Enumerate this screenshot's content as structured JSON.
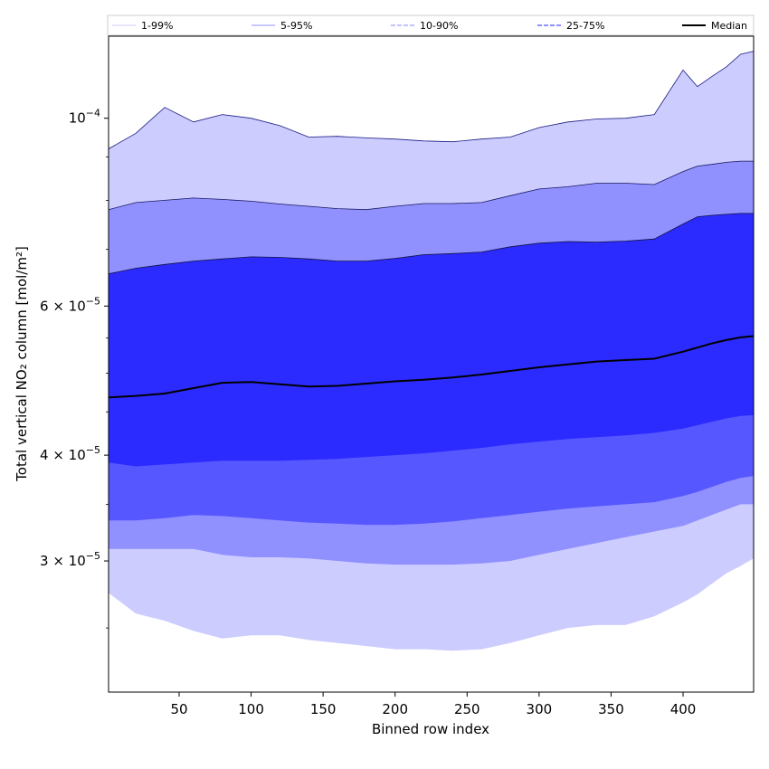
{
  "chart_data": {
    "type": "area",
    "xlabel": "Binned row index",
    "ylabel": "Total vertical NO₂ column [mol/m²]",
    "xlim": [
      1,
      449
    ],
    "ylim": [
      2.1e-05,
      0.000125
    ],
    "yscale": "log",
    "grid": false,
    "legend_position": "top",
    "x_ticks": [
      50,
      100,
      150,
      200,
      250,
      300,
      350,
      400
    ],
    "x_tick_labels": [
      "50",
      "100",
      "150",
      "200",
      "250",
      "300",
      "350",
      "400"
    ],
    "y_ticks": [
      0.0001,
      6e-05,
      4e-05,
      3e-05
    ],
    "y_tick_labels": [
      {
        "base": "10",
        "exp": "−4"
      },
      {
        "mant": "6",
        "base": "10",
        "exp": "−5"
      },
      {
        "mant": "4",
        "base": "10",
        "exp": "−5"
      },
      {
        "mant": "3",
        "base": "10",
        "exp": "−5"
      }
    ],
    "x": [
      1,
      20,
      40,
      60,
      80,
      100,
      120,
      140,
      160,
      180,
      200,
      220,
      240,
      260,
      280,
      300,
      320,
      340,
      360,
      380,
      400,
      410,
      420,
      430,
      440,
      449
    ],
    "series": [
      {
        "name": "1-99%",
        "color": "#ccccff",
        "line_style": "solid",
        "lower": [
          2.75e-05,
          2.6e-05,
          2.55e-05,
          2.48e-05,
          2.43e-05,
          2.45e-05,
          2.45e-05,
          2.42e-05,
          2.4e-05,
          2.38e-05,
          2.36e-05,
          2.36e-05,
          2.35e-05,
          2.36e-05,
          2.4e-05,
          2.45e-05,
          2.5e-05,
          2.52e-05,
          2.52e-05,
          2.58e-05,
          2.68e-05,
          2.74e-05,
          2.82e-05,
          2.9e-05,
          2.96e-05,
          3.02e-05
        ],
        "upper": [
          9.2e-05,
          9.6e-05,
          0.000103,
          9.9e-05,
          0.000101,
          0.0001,
          9.8e-05,
          9.5e-05,
          9.52e-05,
          9.48e-05,
          9.45e-05,
          9.4e-05,
          9.38e-05,
          9.45e-05,
          9.5e-05,
          9.75e-05,
          9.9e-05,
          9.98e-05,
          0.0001,
          0.000101,
          0.000114,
          0.000109,
          0.000112,
          0.000115,
          0.000119,
          0.00012
        ]
      },
      {
        "name": "5-95%",
        "color": "#9090ff",
        "line_style": "solid",
        "lower": [
          3.1e-05,
          3.1e-05,
          3.1e-05,
          3.1e-05,
          3.05e-05,
          3.03e-05,
          3.03e-05,
          3.02e-05,
          3e-05,
          2.98e-05,
          2.97e-05,
          2.97e-05,
          2.97e-05,
          2.98e-05,
          3e-05,
          3.05e-05,
          3.1e-05,
          3.15e-05,
          3.2e-05,
          3.25e-05,
          3.3e-05,
          3.35e-05,
          3.4e-05,
          3.45e-05,
          3.5e-05,
          3.5e-05
        ]
      },
      {
        "name": "10-90%",
        "color": "#5757ff",
        "line_style": "dashed",
        "lower": [
          3.35e-05,
          3.35e-05,
          3.37e-05,
          3.4e-05,
          3.39e-05,
          3.37e-05,
          3.35e-05,
          3.33e-05,
          3.32e-05,
          3.31e-05,
          3.31e-05,
          3.32e-05,
          3.34e-05,
          3.37e-05,
          3.4e-05,
          3.43e-05,
          3.46e-05,
          3.48e-05,
          3.5e-05,
          3.52e-05,
          3.58e-05,
          3.62e-05,
          3.67e-05,
          3.72e-05,
          3.76e-05,
          3.78e-05
        ],
        "upper": [
          7.8e-05,
          7.95e-05,
          8e-05,
          8.05e-05,
          8.02e-05,
          7.98e-05,
          7.92e-05,
          7.87e-05,
          7.82e-05,
          7.8e-05,
          7.87e-05,
          7.93e-05,
          7.93e-05,
          7.95e-05,
          8.1e-05,
          8.25e-05,
          8.3e-05,
          8.38e-05,
          8.38e-05,
          8.35e-05,
          8.65e-05,
          8.78e-05,
          8.82e-05,
          8.87e-05,
          8.9e-05,
          8.9e-05
        ]
      },
      {
        "name": "25-75%",
        "color": "#2b2bff",
        "line_style": "dashed",
        "lower": [
          3.92e-05,
          3.88e-05,
          3.9e-05,
          3.92e-05,
          3.94e-05,
          3.94e-05,
          3.94e-05,
          3.95e-05,
          3.96e-05,
          3.98e-05,
          4e-05,
          4.02e-05,
          4.05e-05,
          4.08e-05,
          4.12e-05,
          4.15e-05,
          4.18e-05,
          4.2e-05,
          4.22e-05,
          4.25e-05,
          4.3e-05,
          4.34e-05,
          4.38e-05,
          4.42e-05,
          4.45e-05,
          4.46e-05
        ],
        "upper": [
          6.55e-05,
          6.65e-05,
          6.72e-05,
          6.78e-05,
          6.82e-05,
          6.86e-05,
          6.85e-05,
          6.82e-05,
          6.78e-05,
          6.78e-05,
          6.83e-05,
          6.9e-05,
          6.92e-05,
          6.95e-05,
          7.05e-05,
          7.12e-05,
          7.15e-05,
          7.14e-05,
          7.16e-05,
          7.2e-05,
          7.5e-05,
          7.65e-05,
          7.68e-05,
          7.7e-05,
          7.72e-05,
          7.72e-05
        ]
      },
      {
        "name": "Median",
        "color": "#000000",
        "line_style": "solid",
        "values": [
          4.68e-05,
          4.7e-05,
          4.73e-05,
          4.8e-05,
          4.87e-05,
          4.88e-05,
          4.85e-05,
          4.82e-05,
          4.83e-05,
          4.86e-05,
          4.89e-05,
          4.91e-05,
          4.94e-05,
          4.98e-05,
          5.03e-05,
          5.08e-05,
          5.12e-05,
          5.16e-05,
          5.18e-05,
          5.2e-05,
          5.3e-05,
          5.36e-05,
          5.42e-05,
          5.47e-05,
          5.51e-05,
          5.53e-05
        ]
      }
    ]
  }
}
